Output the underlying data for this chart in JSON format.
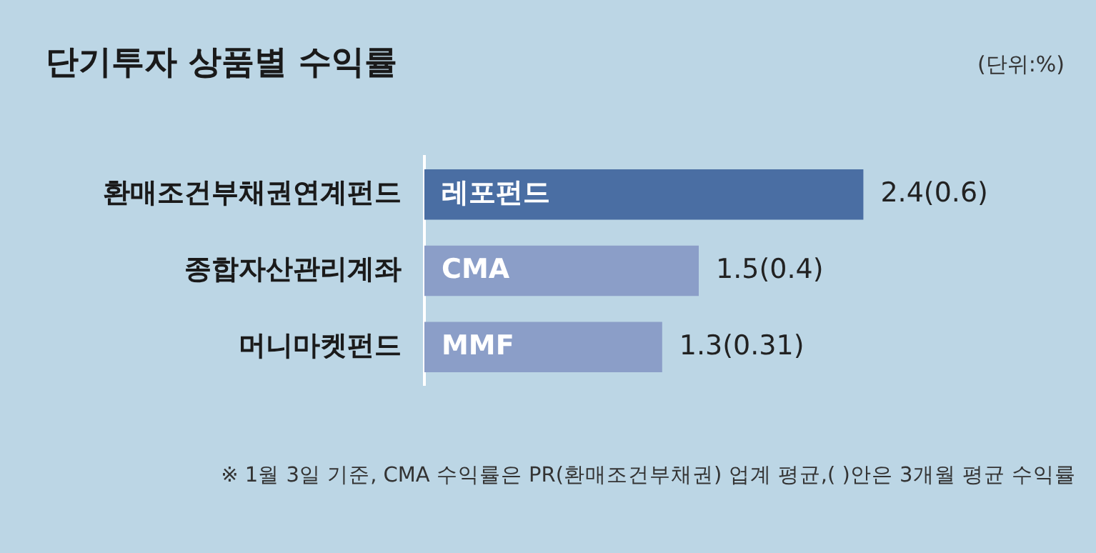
{
  "chart_data": {
    "type": "bar",
    "orientation": "horizontal",
    "title": "단기투자 상품별 수익률",
    "subtitle": "(단위:%)",
    "categories": [
      "환매조건부채권연계펀드",
      "종합자산관리계좌",
      "머니마켓펀드"
    ],
    "values": [
      2.4,
      1.5,
      1.3
    ],
    "colors": [
      "#4a6ea3",
      "#8b9ec8",
      "#8b9ec8"
    ],
    "value_labels": [
      "2.4(0.6)",
      "1.5(0.4)",
      "1.3(0.31)"
    ],
    "annotations": [
      {
        "text": "레포펀드",
        "y": "환매조건부채권연계펀드"
      },
      {
        "text": "CMA",
        "y": "종합자산관리계좌"
      },
      {
        "text": "MMF",
        "y": "머니마켓펀드"
      },
      "※ 1월 3일 기준, CMA 수익률은 PR(환매조건부채권) 업계 평균,( )안은 3개월 평균 수익률"
    ],
    "grid": false,
    "legend": false
  }
}
